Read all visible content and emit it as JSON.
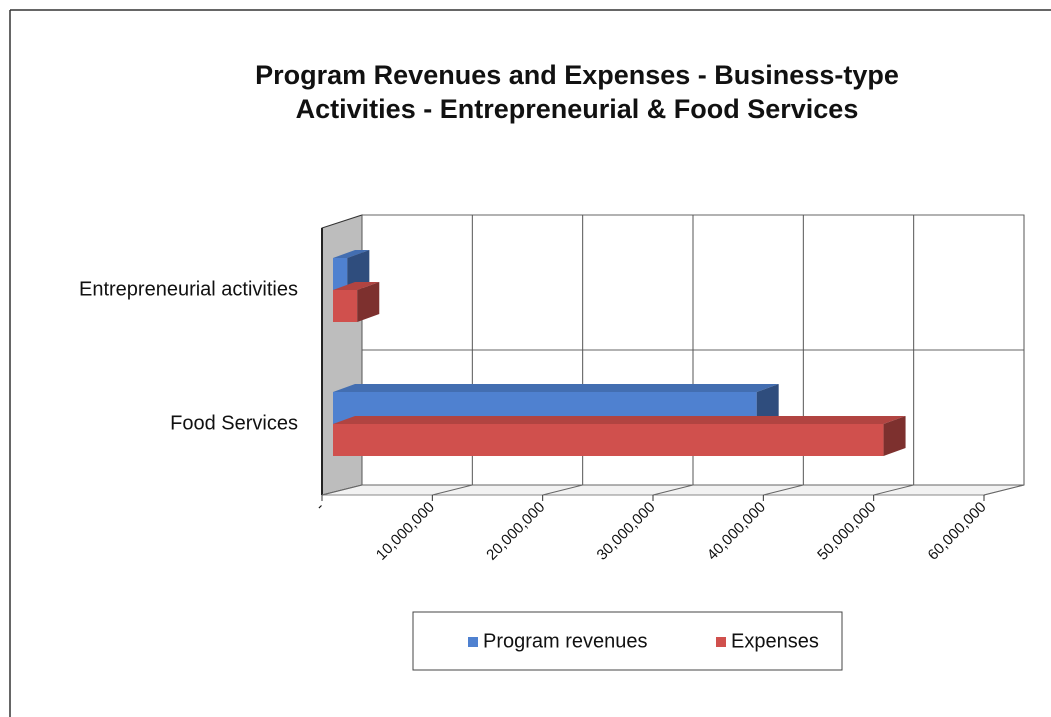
{
  "chart_data": {
    "type": "bar3d_horizontal",
    "title": "Program Revenues and Expenses - Business-type Activities - Entrepreneurial & Food Services",
    "categories": [
      "Entrepreneurial activities",
      "Food Services"
    ],
    "series": [
      {
        "name": "Program revenues",
        "color": "#4f81d0",
        "values": [
          1300000,
          38400000
        ]
      },
      {
        "name": "Expenses",
        "color": "#d0504d",
        "values": [
          2200000,
          49900000
        ]
      }
    ],
    "xlim": [
      0,
      60000000
    ],
    "xticks": [
      {
        "value": 0,
        "label": "-"
      },
      {
        "value": 10000000,
        "label": "10,000,000"
      },
      {
        "value": 20000000,
        "label": "20,000,000"
      },
      {
        "value": 30000000,
        "label": "30,000,000"
      },
      {
        "value": 40000000,
        "label": "40,000,000"
      },
      {
        "value": 50000000,
        "label": "50,000,000"
      },
      {
        "value": 60000000,
        "label": "60,000,000"
      }
    ],
    "grid": true,
    "legend": "bottom"
  }
}
